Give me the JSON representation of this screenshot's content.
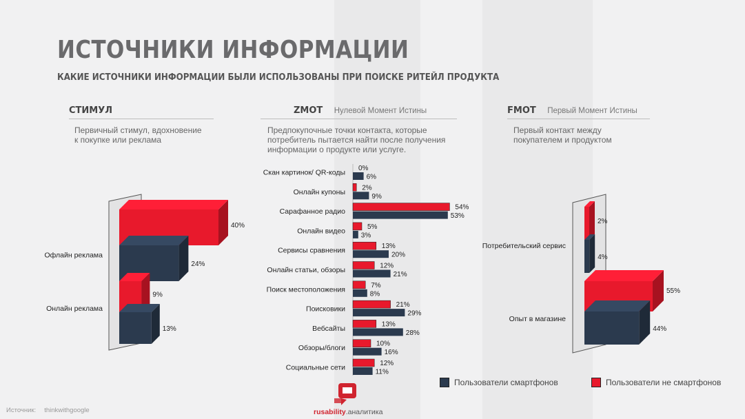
{
  "header": {
    "title": "ИСТОЧНИКИ ИНФОРМАЦИИ",
    "subtitle": "КАКИЕ ИСТОЧНИКИ ИНФОРМАЦИИ БЫЛИ ИСПОЛЬЗОВАНЫ ПРИ ПОИСКЕ РИТЕЙЛ ПРОДУКТА"
  },
  "sections": {
    "stimulus": {
      "name": "СТИМУЛ",
      "description_line1": "Первичный стимул, вдохновение",
      "description_line2": "к покупке или реклама"
    },
    "zmot": {
      "name": "ZMOT",
      "subtitle": "Нулевой Момент Истины",
      "description_line1": "Предпокупочные точки контакта, которые",
      "description_line2": "потребитель пытается найти после получения",
      "description_line3": "информации о продукте или услуге."
    },
    "fmot": {
      "name": "FMOT",
      "subtitle": "Первый Момент Истины",
      "description_line1": "Первый контакт между",
      "description_line2": "покупателем и продуктом"
    }
  },
  "legend": {
    "smartphone": "Пользователи смартфонов",
    "non_smartphone": "Пользователи не смартфонов"
  },
  "source": {
    "label": "Источник:",
    "value": "thinkwithgoogle"
  },
  "brand": {
    "name_red": "rusability",
    "name_rest": ".аналитика"
  },
  "colors": {
    "smartphone": "#2b3a4e",
    "non_smartphone": "#e8192c"
  },
  "chart_data": [
    {
      "type": "bar",
      "orientation": "horizontal",
      "categories": [
        "Офлайн реклама",
        "Онлайн реклама"
      ],
      "series": [
        {
          "name": "Пользователи не смартфонов",
          "values": [
            40,
            9
          ]
        },
        {
          "name": "Пользователи смартфонов",
          "values": [
            24,
            13
          ]
        }
      ]
    },
    {
      "type": "bar",
      "orientation": "horizontal",
      "categories": [
        "Скан картинок/ QR-коды",
        "Онлайн купоны",
        "Сарафанное радио",
        "Онлайн видео",
        "Сервисы сравнения",
        "Онлайн статьи, обзоры",
        "Поиск местоположения",
        "Поисковики",
        "Вебсайты",
        "Обзоры/блоги",
        "Социальные сети"
      ],
      "series": [
        {
          "name": "Пользователи не смартфонов",
          "values": [
            0,
            2,
            54,
            5,
            13,
            12,
            7,
            21,
            13,
            10,
            12
          ]
        },
        {
          "name": "Пользователи смартфонов",
          "values": [
            6,
            9,
            53,
            3,
            20,
            21,
            8,
            29,
            28,
            16,
            11
          ]
        }
      ],
      "legend_position": "bottom"
    },
    {
      "type": "bar",
      "orientation": "horizontal",
      "categories": [
        "Потребительский сервис",
        "Опыт в магазине"
      ],
      "series": [
        {
          "name": "Пользователи не смартфонов",
          "values": [
            2,
            55
          ]
        },
        {
          "name": "Пользователи смартфонов",
          "values": [
            4,
            44
          ]
        }
      ]
    }
  ]
}
